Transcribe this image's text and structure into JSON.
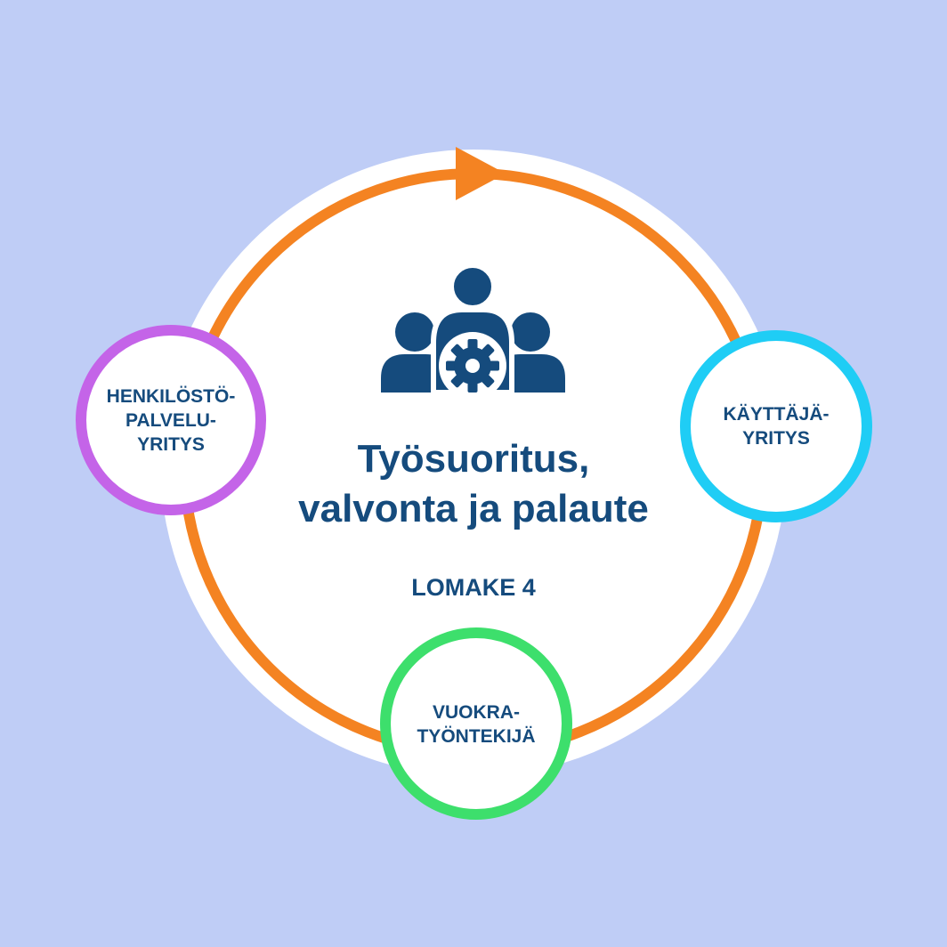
{
  "title_lines": [
    "Työsuoritus,",
    "valvonta ja palaute"
  ],
  "subtitle": "LOMAKE 4",
  "center_icon": "people-gear-icon",
  "nodes": {
    "left": {
      "lines": [
        "HENKILÖSTÖ-",
        "PALVELU-",
        "YRITYS"
      ],
      "color": "#c464e8"
    },
    "right": {
      "lines": [
        "KÄYTTÄJÄ-",
        "YRITYS"
      ],
      "color": "#1fcdf5"
    },
    "bottom": {
      "lines": [
        "VUOKRA-",
        "TYÖNTEKIJÄ"
      ],
      "color": "#3ddf6c"
    }
  },
  "colors": {
    "background": "#bfcdf6",
    "cycle": "#f48322",
    "text": "#154b7d",
    "icon": "#154b7d"
  }
}
